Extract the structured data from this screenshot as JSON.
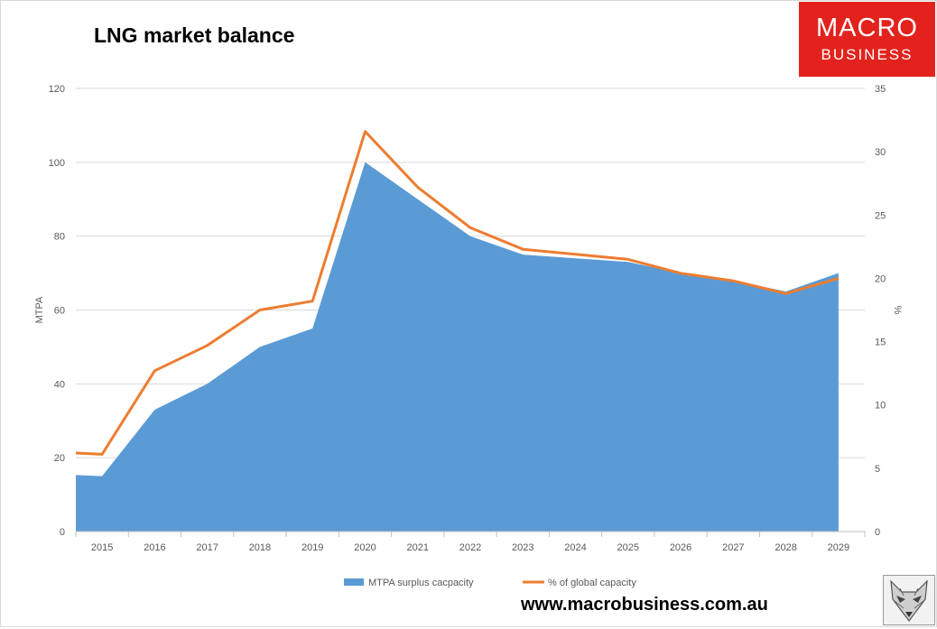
{
  "logo": {
    "line1": "MACRO",
    "line2": "BUSINESS"
  },
  "url": "www.macrobusiness.com.au",
  "chart_data": {
    "type": "area",
    "title": "LNG market balance",
    "x": [
      "2015",
      "2016",
      "2017",
      "2018",
      "2019",
      "2020",
      "2021",
      "2022",
      "2023",
      "2024",
      "2025",
      "2026",
      "2027",
      "2028",
      "2029"
    ],
    "ylabel_left": "MTPA",
    "ylabel_right": "%",
    "ylim_left": [
      0,
      120
    ],
    "ylim_right": [
      0,
      35
    ],
    "yticks_left": [
      0,
      20,
      40,
      60,
      80,
      100,
      120
    ],
    "yticks_right": [
      0,
      5,
      10,
      15,
      20,
      25,
      30,
      35
    ],
    "grid": true,
    "legend_position": "bottom",
    "series": [
      {
        "name": "MTPA surplus cacpacity",
        "type": "area",
        "axis": "left",
        "color": "#5b9bd5",
        "x": [
          2014.5,
          2015,
          2016,
          2017,
          2018,
          2019,
          2020,
          2021,
          2022,
          2023,
          2024,
          2025,
          2026,
          2027,
          2028,
          2029
        ],
        "values": [
          15.3,
          15.0,
          33,
          40,
          50,
          55,
          100,
          90,
          80,
          75,
          74,
          73,
          70,
          68,
          65,
          70
        ]
      },
      {
        "name": "% of global capacity",
        "type": "line",
        "axis": "right",
        "color": "#ed7d31",
        "x": [
          2014.5,
          2015,
          2016,
          2017,
          2018,
          2019,
          2020,
          2021,
          2022,
          2023,
          2024,
          2025,
          2026,
          2027,
          2028,
          2029
        ],
        "values": [
          6.2,
          6.1,
          12.7,
          14.7,
          17.5,
          18.2,
          31.6,
          27.2,
          24.0,
          22.3,
          21.9,
          21.5,
          20.4,
          19.8,
          18.8,
          20.0
        ]
      }
    ]
  }
}
